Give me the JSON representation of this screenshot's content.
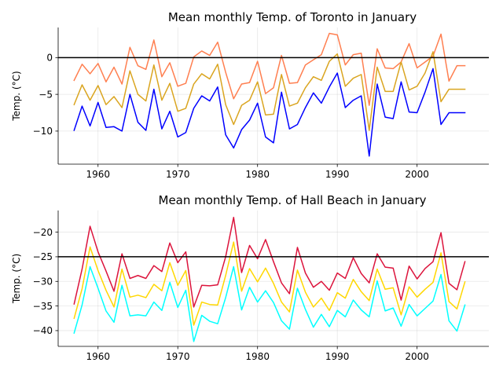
{
  "chart_data": [
    {
      "type": "line",
      "title": "Mean monthly Temp. of Toronto in January",
      "xlabel": "",
      "ylabel": "Temp. (°C)",
      "xlim": [
        1955,
        2009
      ],
      "ylim": [
        -14.5,
        4.1
      ],
      "xticks": [
        1960,
        1970,
        1980,
        1990,
        2000
      ],
      "xtick_labels": [
        "1960",
        "1970",
        "1980",
        "1990",
        "2000"
      ],
      "yticks": [
        -10,
        -5,
        0
      ],
      "ytick_labels": [
        "−10",
        "−5",
        "0"
      ],
      "grid": true,
      "reference_line": 0,
      "x": [
        1957,
        1958,
        1959,
        1960,
        1961,
        1962,
        1963,
        1964,
        1965,
        1966,
        1967,
        1968,
        1969,
        1970,
        1971,
        1972,
        1973,
        1974,
        1975,
        1976,
        1977,
        1978,
        1979,
        1980,
        1981,
        1982,
        1983,
        1984,
        1985,
        1986,
        1987,
        1988,
        1989,
        1990,
        1991,
        1992,
        1993,
        1994,
        1995,
        1996,
        1997,
        1998,
        1999,
        2000,
        2001,
        2002,
        2003,
        2004,
        2005,
        2006
      ],
      "series": [
        {
          "color": "#ff7f50",
          "values": [
            -3.1,
            -0.9,
            -2.2,
            -0.8,
            -3.3,
            -1.3,
            -3.6,
            1.4,
            -1.1,
            -1.6,
            2.4,
            -2.6,
            -0.7,
            -3.9,
            -3.5,
            0.1,
            0.9,
            0.3,
            2.1,
            -2.0,
            -5.6,
            -3.6,
            -3.4,
            -0.5,
            -4.9,
            -4.1,
            0.3,
            -3.5,
            -3.4,
            -1.0,
            -0.3,
            0.4,
            3.3,
            3.1,
            -1.0,
            0.4,
            0.6,
            -6.5,
            1.2,
            -1.4,
            -1.5,
            -0.6,
            1.9,
            -1.4,
            -0.6,
            0.2,
            3.2,
            -3.2,
            -1.1,
            -1.1
          ]
        },
        {
          "color": "#daa520",
          "values": [
            -6.4,
            -3.7,
            -5.8,
            -3.8,
            -6.4,
            -5.3,
            -6.8,
            -1.8,
            -5.0,
            -5.9,
            -1.0,
            -5.8,
            -3.5,
            -7.3,
            -6.9,
            -3.6,
            -2.2,
            -2.9,
            -0.9,
            -6.4,
            -9.1,
            -6.5,
            -5.8,
            -3.3,
            -7.8,
            -7.7,
            -2.3,
            -6.6,
            -6.2,
            -4.1,
            -2.6,
            -3.1,
            -0.5,
            0.5,
            -3.9,
            -2.8,
            -2.3,
            -9.9,
            -1.3,
            -4.6,
            -4.6,
            -0.6,
            -4.4,
            -3.9,
            -2.1,
            0.8,
            -6.0,
            -4.3,
            -4.3,
            -4.3
          ]
        },
        {
          "color": "#0000ff",
          "values": [
            -9.9,
            -6.6,
            -9.3,
            -6.1,
            -9.5,
            -9.4,
            -10.0,
            -5.0,
            -8.8,
            -9.9,
            -4.3,
            -9.7,
            -7.3,
            -10.8,
            -10.2,
            -6.9,
            -5.2,
            -5.9,
            -4.0,
            -10.5,
            -12.3,
            -9.8,
            -8.5,
            -6.2,
            -10.8,
            -11.6,
            -4.7,
            -9.7,
            -9.1,
            -6.8,
            -4.8,
            -6.2,
            -4.0,
            -2.1,
            -6.8,
            -5.8,
            -5.2,
            -13.4,
            -3.6,
            -8.1,
            -8.3,
            -3.3,
            -7.4,
            -7.5,
            -4.7,
            -1.5,
            -9.1,
            -7.5,
            -7.5,
            -7.5
          ]
        }
      ]
    },
    {
      "type": "line",
      "title": "Mean monthly Temp. of Hall Beach in January",
      "xlabel": "",
      "ylabel": "Temp. (°C)",
      "xlim": [
        1955,
        2009
      ],
      "ylim": [
        -43.2,
        -15.6
      ],
      "xticks": [
        1960,
        1970,
        1980,
        1990,
        2000
      ],
      "xtick_labels": [
        "1960",
        "1970",
        "1980",
        "1990",
        "2000"
      ],
      "yticks": [
        -40,
        -35,
        -30,
        -25,
        -20
      ],
      "ytick_labels": [
        "−40",
        "−35",
        "−30",
        "−25",
        "−20"
      ],
      "grid": true,
      "reference_line": -25,
      "x": [
        1957,
        1958,
        1959,
        1960,
        1961,
        1962,
        1963,
        1964,
        1965,
        1966,
        1967,
        1968,
        1969,
        1970,
        1971,
        1972,
        1973,
        1974,
        1975,
        1976,
        1977,
        1978,
        1979,
        1980,
        1981,
        1982,
        1983,
        1984,
        1985,
        1986,
        1987,
        1988,
        1989,
        1990,
        1991,
        1992,
        1993,
        1994,
        1995,
        1996,
        1997,
        1998,
        1999,
        2000,
        2001,
        2002,
        2003,
        2004,
        2005,
        2006
      ],
      "series": [
        {
          "color": "#dc143c",
          "values": [
            -34.6,
            -27.5,
            -18.8,
            -24.0,
            -27.9,
            -32.0,
            -24.4,
            -29.4,
            -28.8,
            -29.4,
            -26.8,
            -28.0,
            -22.2,
            -26.2,
            -24.0,
            -35.2,
            -30.8,
            -30.9,
            -30.7,
            -25.0,
            -17.0,
            -28.2,
            -22.7,
            -25.4,
            -21.5,
            -26.0,
            -30.3,
            -32.5,
            -23.1,
            -28.3,
            -31.2,
            -30.0,
            -31.8,
            -28.3,
            -29.4,
            -25.2,
            -28.4,
            -30.3,
            -24.4,
            -27.1,
            -27.3,
            -33.8,
            -26.9,
            -29.5,
            -27.4,
            -26.0,
            -20.1,
            -30.4,
            -31.7,
            -26.0
          ]
        },
        {
          "color": "#ffd700",
          "values": [
            -37.5,
            -31.5,
            -23.0,
            -27.8,
            -31.8,
            -35.2,
            -27.5,
            -33.2,
            -32.8,
            -33.3,
            -30.6,
            -31.9,
            -26.2,
            -30.8,
            -27.8,
            -38.9,
            -34.2,
            -34.7,
            -34.8,
            -28.8,
            -22.0,
            -32.0,
            -27.4,
            -30.1,
            -27.3,
            -30.4,
            -34.2,
            -36.2,
            -27.7,
            -32.2,
            -35.2,
            -33.4,
            -35.9,
            -32.3,
            -33.4,
            -29.6,
            -32.1,
            -33.9,
            -27.5,
            -31.6,
            -31.3,
            -36.8,
            -31.1,
            -33.2,
            -31.6,
            -30.2,
            -24.2,
            -34.1,
            -35.6,
            -30.1
          ]
        },
        {
          "color": "#00ffff",
          "values": [
            -40.5,
            -34.8,
            -27.0,
            -31.4,
            -36.0,
            -38.3,
            -30.8,
            -37.0,
            -36.8,
            -37.0,
            -34.2,
            -35.9,
            -30.2,
            -35.3,
            -31.8,
            -42.2,
            -36.9,
            -38.1,
            -38.6,
            -33.3,
            -27.0,
            -35.8,
            -31.2,
            -34.2,
            -31.9,
            -34.3,
            -38.0,
            -39.7,
            -31.4,
            -35.7,
            -39.3,
            -36.7,
            -39.2,
            -35.9,
            -37.2,
            -33.8,
            -35.8,
            -37.2,
            -29.9,
            -36.0,
            -35.4,
            -39.1,
            -34.7,
            -37.0,
            -35.5,
            -34.0,
            -28.6,
            -38.0,
            -40.1,
            -34.8
          ]
        }
      ]
    }
  ]
}
